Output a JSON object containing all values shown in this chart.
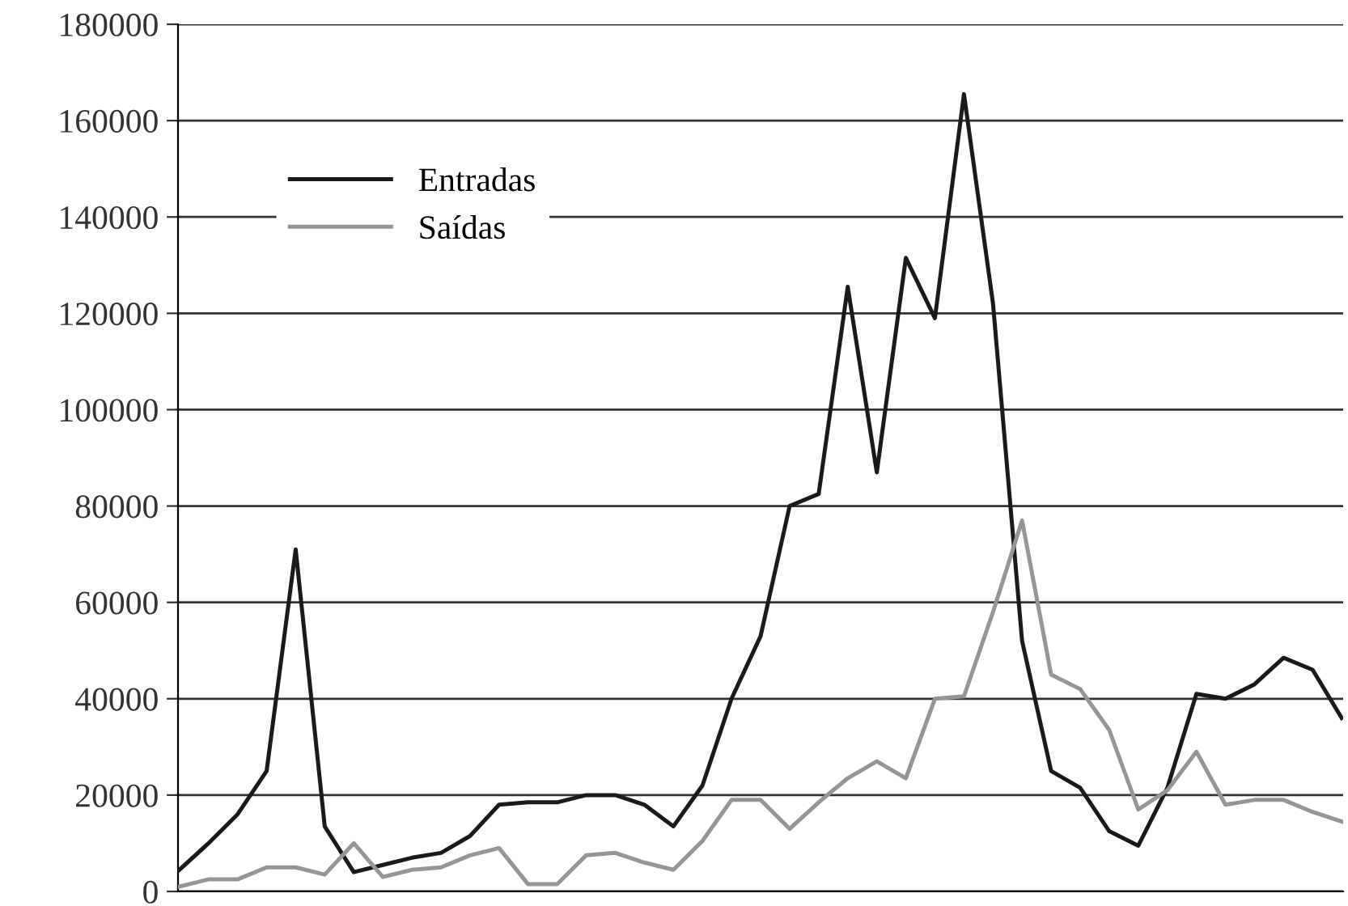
{
  "chart_data": {
    "type": "line",
    "categories": [
      null,
      null,
      null,
      null,
      null,
      null,
      null,
      null,
      null,
      null,
      null,
      null,
      null,
      null,
      null,
      null,
      null,
      null,
      null,
      null,
      null,
      null,
      null,
      null,
      null,
      null,
      null,
      null,
      null,
      null,
      null,
      null,
      null,
      null,
      null,
      null,
      null,
      null,
      null,
      null,
      null
    ],
    "series": [
      {
        "name": "Entradas",
        "color": "#1a1a1a",
        "values": [
          4500,
          10000,
          16000,
          25000,
          71000,
          13500,
          4000,
          5500,
          7000,
          8000,
          11500,
          18000,
          18500,
          18500,
          20000,
          20000,
          18000,
          13500,
          22000,
          40000,
          53000,
          80000,
          82500,
          125500,
          87000,
          131500,
          119000,
          165500,
          122000,
          52000,
          25000,
          21500,
          12500,
          9500,
          21500,
          41000,
          40000,
          43000,
          48500,
          46000,
          36000
        ]
      },
      {
        "name": "Saídas",
        "color": "#959595",
        "values": [
          1000,
          2500,
          2500,
          5000,
          5000,
          3500,
          10000,
          3000,
          4500,
          5000,
          7500,
          9000,
          1500,
          1500,
          7500,
          8000,
          6000,
          4500,
          10500,
          19000,
          19000,
          13000,
          18500,
          23500,
          27000,
          23500,
          40000,
          40500,
          58000,
          77000,
          45000,
          42000,
          33500,
          17000,
          21000,
          29000,
          18000,
          19000,
          19000,
          16500,
          14500
        ]
      }
    ],
    "ylim": [
      0,
      180000
    ],
    "yticks": [
      0,
      20000,
      40000,
      60000,
      80000,
      100000,
      120000,
      140000,
      160000,
      180000
    ],
    "grid": "y",
    "legend": "top left",
    "marker": "none",
    "line_style": "solid",
    "tick_labels": "y"
  }
}
